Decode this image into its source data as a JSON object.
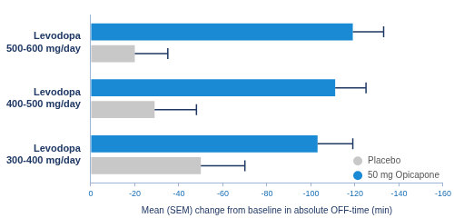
{
  "chart_data": {
    "type": "bar",
    "orientation": "horizontal",
    "categories": [
      "Levodopa 500-600 mg/day",
      "Levodopa 400-500 mg/day",
      "Levodopa 300-400 mg/day"
    ],
    "series": [
      {
        "name": "Placebo",
        "color": "#c8c8c8",
        "values": [
          -20,
          -29,
          -50
        ],
        "errors": [
          15,
          19,
          20
        ]
      },
      {
        "name": "50 mg Opicapone",
        "color": "#1a8ad4",
        "values": [
          -119,
          -111,
          -103
        ],
        "errors": [
          14,
          14,
          16
        ]
      }
    ],
    "x_label": "Mean (SEM) change from baseline in absolute OFF-time (min)",
    "xlim": [
      0,
      -160
    ],
    "xticks": [
      0,
      -20,
      -40,
      -60,
      -80,
      -100,
      -120,
      -140,
      -160
    ],
    "grid": false,
    "legend": "lower right"
  }
}
